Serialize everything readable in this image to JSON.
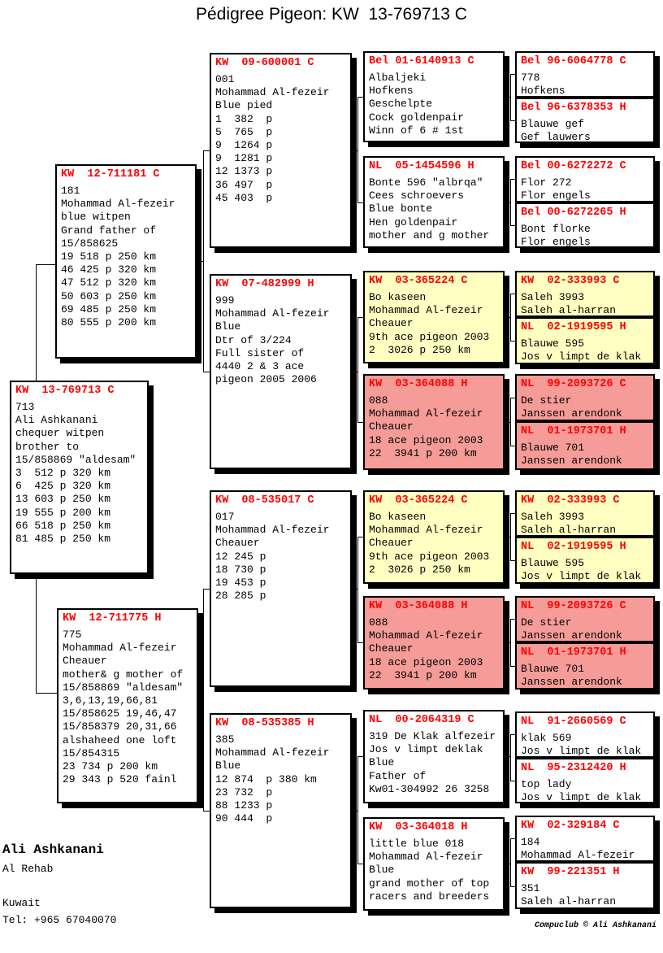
{
  "title": "Pédigree Pigeon: KW  13-769713 C",
  "colors": {
    "header_red": "#ff0000",
    "highlight_yellow": "#ffffc2",
    "highlight_pink": "#f59c98",
    "box_border": "#000000"
  },
  "subject": {
    "header": "KW  13-769713 C",
    "body": "713\nAli Ashkanani\nchequer witpen\nbrother to\n15/858869 \"aldesam\"\n3  512 p 320 km\n6  425 p 320 km\n13 603 p 250 km\n19 555 p 200 km\n66 518 p 250 km\n81 485 p 250 km"
  },
  "gen2": {
    "father": {
      "header": "KW  12-711181 C",
      "body": "181\nMohammad Al-fezeir\nblue witpen\nGrand father of\n15/858625\n19 518 p 250 km\n46 425 p 320 km\n47 512 p 320 km\n50 603 p 250 km\n69 485 p 250 km\n80 555 p 200 km"
    },
    "mother": {
      "header": "KW  12-711775 H",
      "body": "775\nMohammad Al-fezeir\nCheauer\nmother& g mother of\n15/858869 \"aldesam\"\n3,6,13,19,66,81\n15/858625 19,46,47\n15/858379 20,31,66\nalshaheed one loft\n15/854315\n23 734 p 200 km\n29 343 p 520 fainl"
    }
  },
  "gen3": [
    {
      "header": "KW  09-600001 C",
      "body": "001\nMohammad Al-fezeir\nBlue pied\n1  382  p\n5  765  p\n9  1264 p\n9  1281 p\n12 1373 p\n36 497  p\n45 403  p"
    },
    {
      "header": "KW  07-482999 H",
      "body": "999\nMohammad Al-fezeir\nBlue\nDtr of 3/224\nFull sister of\n4440 2 & 3 ace\npigeon 2005 2006"
    },
    {
      "header": "KW  08-535017 C",
      "body": "017\nMohammad Al-fezeir\nCheauer\n12 245 p\n18 730 p\n19 453 p\n28 285 p"
    },
    {
      "header": "KW  08-535385 H",
      "body": "385\nMohammad Al-fezeir\nBlue\n12 874  p 380 km\n23 732  p\n88 1233 p\n90 444  p"
    }
  ],
  "gen4": [
    {
      "header": "Bel 01-6140913 C",
      "body": "Albaljeki\nHofkens\nGeschelpte\nCock goldenpair\nWinn of 6 # 1st"
    },
    {
      "header": "NL  05-1454596 H",
      "body": "Bonte 596 \"albrqa\"\nCees schroevers\nBlue bonte\nHen goldenpair\nmother and g mother"
    },
    {
      "header": "KW  03-365224 C",
      "body": "Bo kaseen\nMohammad Al-fezeir\nCheauer\n9th ace pigeon 2003\n2  3026 p 250 km"
    },
    {
      "header": "KW  03-364088 H",
      "body": "088\nMohammad Al-fezeir\nCheauer\n18 ace pigeon 2003\n22  3941 p 200 km"
    },
    {
      "header": "KW  03-365224 C",
      "body": "Bo kaseen\nMohammad Al-fezeir\nCheauer\n9th ace pigeon 2003\n2  3026 p 250 km"
    },
    {
      "header": "KW  03-364088 H",
      "body": "088\nMohammad Al-fezeir\nCheauer\n18 ace pigeon 2003\n22  3941 p 200 km"
    },
    {
      "header": "NL  00-2064319 C",
      "body": "319 De Klak alfezeir\nJos v limpt deklak\nBlue\nFather of\nKw01-304992 26 3258"
    },
    {
      "header": "KW  03-364018 H",
      "body": "little blue 018\nMohammad Al-fezeir\nBlue\ngrand mother of top\nracers and breeders"
    }
  ],
  "gen5": [
    {
      "header": "Bel 96-6064778 C",
      "body": "778\nHofkens"
    },
    {
      "header": "Bel 96-6378353 H",
      "body": "Blauwe gef\nGef lauwers"
    },
    {
      "header": "Bel 00-6272272 C",
      "body": "Flor 272\nFlor engels"
    },
    {
      "header": "Bel 00-6272265 H",
      "body": "Bont florke\nFlor engels"
    },
    {
      "header": "KW  02-333993 C",
      "body": "Saleh 3993\nSaleh al-harran"
    },
    {
      "header": "NL  02-1919595 H",
      "body": "Blauwe 595\nJos v limpt de klak"
    },
    {
      "header": "NL  99-2093726 C",
      "body": "De stier\nJanssen arendonk"
    },
    {
      "header": "NL  01-1973701 H",
      "body": "Blauwe 701\nJanssen arendonk"
    },
    {
      "header": "KW  02-333993 C",
      "body": "Saleh 3993\nSaleh al-harran"
    },
    {
      "header": "NL  02-1919595 H",
      "body": "Blauwe 595\nJos v limpt de klak"
    },
    {
      "header": "NL  99-2093726 C",
      "body": "De stier\nJanssen arendonk"
    },
    {
      "header": "NL  01-1973701 H",
      "body": "Blauwe 701\nJanssen arendonk"
    },
    {
      "header": "NL  91-2660569 C",
      "body": "klak 569\nJos v limpt de klak"
    },
    {
      "header": "NL  95-2312420 H",
      "body": "top lady\nJos v limpt de klak"
    },
    {
      "header": "KW  02-329184 C",
      "body": "184\nMohammad Al-fezeir"
    },
    {
      "header": "KW  99-221351 H",
      "body": "351\nSaleh al-harran"
    }
  ],
  "owner": {
    "name": "Ali Ashkanani",
    "rest": "Al Rehab\n\nKuwait\nTel: +965 67040070"
  },
  "footer": "Compuclub © Ali Ashkanani"
}
